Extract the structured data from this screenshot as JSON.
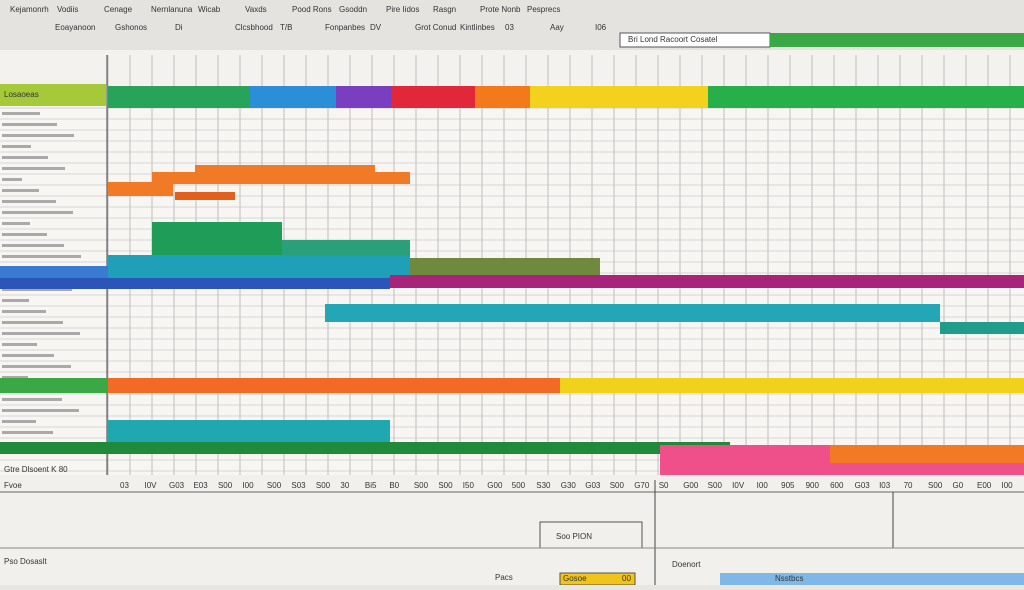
{
  "menu": [
    "Kejamonrh",
    "Vodiis",
    "Cenage",
    "Nernlanuna",
    "Wicab",
    "Vaxds",
    "Pood Rons",
    "Gsoddn",
    "Pire Iidos",
    "Rasgn",
    "Prote Nonb",
    "Pesprecs"
  ],
  "toolbar": [
    "Eoayanoon",
    "Gshonos",
    "Di",
    "Clcsbhood",
    "T/B",
    "Fonpanbes",
    "DV",
    "Grot Conud",
    "Kintlinbes",
    "03",
    "Aay",
    "I06"
  ],
  "name_box": "Bri Lond Racoort Cosatel",
  "header_left": "Losaoeas",
  "x_labels": [
    "03",
    "I0V",
    "G03",
    "E03",
    "S00",
    "I00",
    "S00",
    "S03",
    "S00",
    "30",
    "Bi5",
    "B0",
    "S00",
    "S00",
    "I50",
    "G00",
    "500",
    "S30",
    "G30",
    "G03",
    "S00",
    "G70",
    "S0",
    "G00",
    "S00",
    "I0V",
    "I00",
    "905",
    "900",
    "600",
    "G03",
    "I03",
    "70",
    "S00",
    "G0",
    "E00",
    "I00"
  ],
  "left_footer": "Gtre Dlsoent K 80",
  "bottom": {
    "row_label": "Fvoe",
    "title": "Pso Dosaslt",
    "box_label": "Soo PION",
    "field_label": "Pacs",
    "field_value": "Gosoe",
    "field_value2": "00",
    "right_label": "Doenort",
    "right_tab": "Nsstbcs"
  }
}
